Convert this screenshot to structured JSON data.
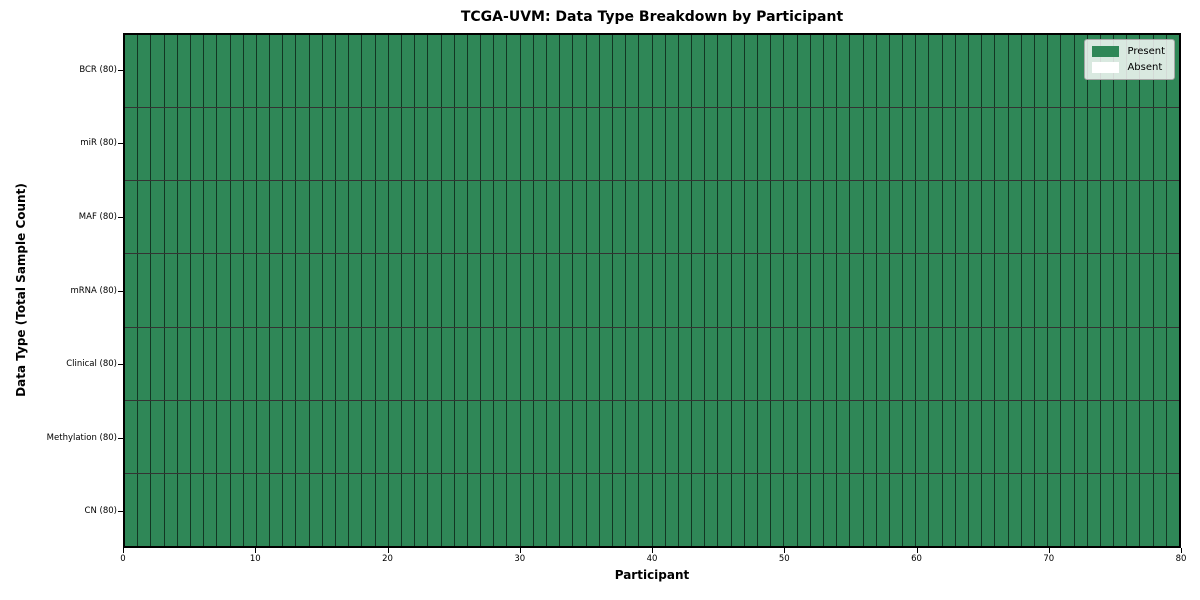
{
  "title": "TCGA-UVM: Data Type Breakdown by Participant",
  "axes": {
    "x_label": "Participant",
    "y_label": "Data Type (Total Sample Count)",
    "x_ticks": [
      0,
      10,
      20,
      30,
      40,
      50,
      60,
      70,
      80
    ],
    "x_range": [
      0,
      80
    ]
  },
  "legend": {
    "position": "upper right",
    "items": [
      {
        "label": "Present",
        "color": "#2f8757"
      },
      {
        "label": "Absent",
        "color": "#ffffff"
      }
    ]
  },
  "chart_data": {
    "type": "heatmap",
    "title": "TCGA-UVM: Data Type Breakdown by Participant",
    "xlabel": "Participant",
    "ylabel": "Data Type (Total Sample Count)",
    "x_range": [
      0,
      80
    ],
    "n_participants": 80,
    "grid": false,
    "legend_position": "upper right",
    "rows": [
      {
        "label": "BCR (80)",
        "data_type": "BCR",
        "total_samples": 80,
        "present_count": 80,
        "absent_count": 0
      },
      {
        "label": "miR (80)",
        "data_type": "miR",
        "total_samples": 80,
        "present_count": 80,
        "absent_count": 0
      },
      {
        "label": "MAF (80)",
        "data_type": "MAF",
        "total_samples": 80,
        "present_count": 80,
        "absent_count": 0
      },
      {
        "label": "mRNA (80)",
        "data_type": "mRNA",
        "total_samples": 80,
        "present_count": 80,
        "absent_count": 0
      },
      {
        "label": "Clinical (80)",
        "data_type": "Clinical",
        "total_samples": 80,
        "present_count": 80,
        "absent_count": 0
      },
      {
        "label": "Methylation (80)",
        "data_type": "Methylation",
        "total_samples": 80,
        "present_count": 80,
        "absent_count": 0
      },
      {
        "label": "CN (80)",
        "data_type": "CN",
        "total_samples": 80,
        "present_count": 80,
        "absent_count": 0
      }
    ],
    "colors": {
      "present": "#2f8757",
      "absent": "#ffffff",
      "cell_border": "rgba(0,0,0,0.6)",
      "row_border": "rgba(0,0,0,0.8)",
      "spine": "#000000"
    }
  }
}
